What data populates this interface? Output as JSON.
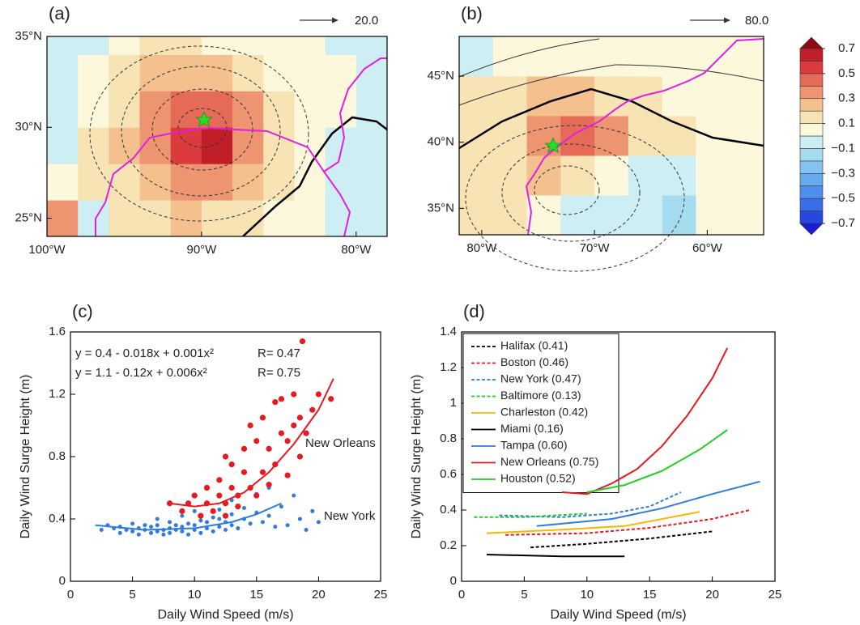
{
  "chart_data": [
    {
      "type": "heatmap",
      "panel_label": "(a)",
      "reference_vector": "20.0",
      "xlim": [
        -100,
        -78
      ],
      "ylim": [
        24,
        35
      ],
      "xticks": [
        {
          "value": -100,
          "label": "100°W"
        },
        {
          "value": -90,
          "label": "90°W"
        },
        {
          "value": -80,
          "label": "80°W"
        }
      ],
      "yticks": [
        {
          "value": 25,
          "label": "25°N"
        },
        {
          "value": 30,
          "label": "30°N"
        },
        {
          "value": 35,
          "label": "35°N"
        }
      ],
      "x": [
        -99,
        -97,
        -95,
        -93,
        -91,
        -89,
        -87,
        -85,
        -83,
        -81,
        -79
      ],
      "y": [
        25,
        27,
        29,
        31,
        33,
        35
      ],
      "z": [
        [
          0.3,
          -0.1,
          0.1,
          0.1,
          0.2,
          0.15,
          0.1,
          0.05,
          0.05,
          -0.1,
          -0.05
        ],
        [
          0.05,
          0.1,
          0.15,
          0.25,
          0.35,
          0.3,
          0.2,
          0.1,
          0.05,
          -0.1,
          -0.1
        ],
        [
          -0.05,
          0.1,
          0.2,
          0.35,
          0.55,
          0.65,
          0.35,
          0.1,
          0.05,
          -0.05,
          -0.1
        ],
        [
          -0.1,
          0.05,
          0.15,
          0.3,
          0.45,
          0.45,
          0.3,
          0.1,
          0.05,
          0.05,
          -0.05
        ],
        [
          -0.1,
          0.05,
          0.1,
          0.2,
          0.25,
          0.2,
          0.1,
          0.05,
          0.05,
          0.05,
          -0.1
        ],
        [
          -0.1,
          -0.1,
          0.05,
          0.1,
          0.1,
          0.05,
          0.05,
          0.05,
          0.05,
          -0.05,
          -0.1
        ]
      ]
    },
    {
      "type": "heatmap",
      "panel_label": "(b)",
      "reference_vector": "80.0",
      "xlim": [
        -82,
        -55
      ],
      "ylim": [
        33,
        48
      ],
      "xticks": [
        {
          "value": -80,
          "label": "80°W"
        },
        {
          "value": -70,
          "label": "70°W"
        },
        {
          "value": -60,
          "label": "60°W"
        }
      ],
      "yticks": [
        {
          "value": 35,
          "label": "35°N"
        },
        {
          "value": 40,
          "label": "40°N"
        },
        {
          "value": 45,
          "label": "45°N"
        }
      ],
      "x": [
        -80.5,
        -77.5,
        -74.5,
        -71.5,
        -68.5,
        -65.5,
        -62.5,
        -59.5,
        -56.5
      ],
      "y": [
        34.5,
        37.5,
        40.5,
        43.5,
        46.5
      ],
      "z": [
        [
          0.1,
          0.1,
          0.05,
          -0.05,
          -0.05,
          -0.1,
          -0.15,
          0.05,
          0.05
        ],
        [
          0.1,
          0.1,
          0.2,
          0.1,
          0.05,
          -0.05,
          -0.1,
          0.05,
          0.05
        ],
        [
          0.1,
          0.15,
          0.35,
          0.45,
          0.3,
          0.15,
          0.1,
          0.05,
          0.05
        ],
        [
          0.1,
          0.1,
          0.2,
          0.2,
          0.15,
          0.1,
          0.05,
          0.05,
          0.05
        ],
        [
          -0.1,
          0.05,
          0.05,
          0.05,
          0.05,
          0.05,
          0.05,
          0.05,
          0.05
        ]
      ],
      "colorbar": {
        "levels": [
          -0.7,
          -0.6,
          -0.5,
          -0.4,
          -0.3,
          -0.2,
          -0.1,
          0,
          0.1,
          0.2,
          0.3,
          0.4,
          0.5,
          0.6,
          0.7
        ],
        "colors": [
          "#1a1ad9",
          "#2448e0",
          "#3a6ee8",
          "#4f8eee",
          "#66aaf0",
          "#84c4f2",
          "#a6dcef",
          "#cdeef2",
          "#fdf8dc",
          "#f8e3b4",
          "#f3c08e",
          "#ec9570",
          "#e56a58",
          "#dc3a3c",
          "#c01f2a",
          "#8f0a14"
        ],
        "ticks": [
          0.7,
          0.5,
          0.3,
          0.1,
          {
            "value": -0.1,
            "label": "−0.1"
          },
          {
            "value": -0.3,
            "label": "−0.3"
          },
          {
            "value": -0.5,
            "label": "−0.5"
          },
          {
            "value": -0.7,
            "label": "−0.7"
          }
        ]
      }
    },
    {
      "type": "scatter",
      "panel_label": "(c)",
      "xlabel": "Daily Wind Speed (m/s)",
      "ylabel": "Daily Wind Surge Height (m)",
      "xlim": [
        0,
        25
      ],
      "ylim": [
        0,
        1.6
      ],
      "xticks": [
        0,
        5,
        10,
        15,
        20,
        25
      ],
      "yticks": [
        0,
        0.4,
        0.8,
        1.2,
        1.6
      ],
      "series": [
        {
          "mode": "markers",
          "color": "#2f7be0",
          "x": [
            2.5,
            3,
            3.5,
            4,
            4,
            4.5,
            5,
            5,
            5.5,
            5.5,
            6,
            6,
            6.5,
            6.5,
            7,
            7,
            7,
            7.5,
            7.5,
            8,
            8,
            8,
            8.5,
            8.5,
            9,
            9,
            9,
            9.5,
            9.5,
            10,
            10,
            10,
            10.5,
            10.5,
            11,
            11,
            11,
            11.5,
            11.5,
            12,
            12,
            12,
            12.5,
            12.5,
            13,
            13,
            13,
            13.5,
            14,
            14,
            14.5,
            15,
            15,
            15.5,
            16,
            16,
            16.5,
            17,
            17.5,
            18,
            18.5,
            19,
            19.5,
            20
          ],
          "values": [
            0.33,
            0.36,
            0.34,
            0.31,
            0.35,
            0.33,
            0.32,
            0.37,
            0.3,
            0.34,
            0.33,
            0.36,
            0.31,
            0.35,
            0.32,
            0.36,
            0.4,
            0.33,
            0.3,
            0.34,
            0.38,
            0.31,
            0.33,
            0.36,
            0.32,
            0.35,
            0.42,
            0.3,
            0.37,
            0.33,
            0.36,
            0.45,
            0.31,
            0.39,
            0.34,
            0.38,
            0.5,
            0.32,
            0.41,
            0.35,
            0.4,
            0.46,
            0.33,
            0.38,
            0.36,
            0.43,
            0.52,
            0.34,
            0.4,
            0.47,
            0.37,
            0.44,
            0.56,
            0.38,
            0.42,
            0.6,
            0.35,
            0.48,
            0.36,
            0.55,
            0.4,
            0.33,
            0.45,
            0.38
          ]
        },
        {
          "mode": "markers",
          "color": "#e8191f",
          "x": [
            8,
            9,
            9.5,
            10,
            10.5,
            11,
            11,
            11.5,
            12,
            12,
            12.5,
            12.5,
            13,
            13,
            13.5,
            13.5,
            14,
            14,
            14.5,
            15,
            15,
            15.5,
            15.5,
            16,
            16,
            16.5,
            16.5,
            17,
            17,
            17.5,
            17.5,
            18,
            18,
            18.5,
            18.5,
            19,
            19.5,
            20,
            21,
            18.7,
            14.5,
            12.5
          ],
          "values": [
            0.5,
            0.45,
            0.5,
            0.55,
            0.42,
            0.6,
            0.5,
            0.45,
            0.55,
            0.65,
            0.5,
            0.42,
            0.6,
            0.75,
            0.55,
            0.48,
            0.7,
            0.85,
            0.6,
            0.55,
            0.9,
            0.7,
            1.05,
            0.85,
            0.62,
            1.15,
            0.75,
            1.17,
            0.95,
            0.9,
            0.68,
            1.0,
            1.2,
            0.8,
            1.05,
            0.95,
            1.1,
            1.2,
            1.17,
            1.54,
            1.0,
            0.8
          ]
        },
        {
          "mode": "line",
          "color": "#2f7be0",
          "x": [
            2,
            6,
            10,
            13,
            15,
            17
          ],
          "values": [
            0.36,
            0.33,
            0.34,
            0.38,
            0.43,
            0.5
          ]
        },
        {
          "mode": "line",
          "color": "#e8191f",
          "x": [
            8,
            10,
            12,
            14,
            16,
            18,
            20,
            21.2
          ],
          "values": [
            0.5,
            0.48,
            0.5,
            0.57,
            0.7,
            0.88,
            1.1,
            1.3
          ]
        }
      ],
      "annotations": [
        {
          "text": "y = 0.4 - 0.018x + 0.001x²",
          "color": "#2f7be0"
        },
        {
          "text": "R= 0.47",
          "color": "#2f7be0"
        },
        {
          "text": "y = 1.1 - 0.12x + 0.006x²",
          "color": "#e8191f"
        },
        {
          "text": "R= 0.75",
          "color": "#e8191f"
        },
        {
          "text": "New Orleans",
          "color": "#e8191f"
        },
        {
          "text": "New York",
          "color": "#2f7be0"
        }
      ]
    },
    {
      "type": "line",
      "panel_label": "(d)",
      "xlabel": "Daily Wind Speed (m/s)",
      "ylabel": "Daily Wind Surge Height (m)",
      "xlim": [
        0,
        25
      ],
      "ylim": [
        0,
        1.4
      ],
      "xticks": [
        0,
        5,
        10,
        15,
        20,
        25
      ],
      "yticks": [
        0,
        0.2,
        0.4,
        0.6,
        0.8,
        1,
        1.2,
        1.4
      ],
      "legend": "upper left",
      "series": [
        {
          "name": "Halifax (0.41)",
          "color": "#000000",
          "dashed": true,
          "x": [
            5.5,
            10,
            15,
            20
          ],
          "values": [
            0.19,
            0.21,
            0.24,
            0.28
          ]
        },
        {
          "name": "Boston (0.46)",
          "color": "#e8191f",
          "dashed": true,
          "x": [
            3.5,
            10,
            15,
            20,
            23
          ],
          "values": [
            0.26,
            0.27,
            0.3,
            0.35,
            0.4
          ]
        },
        {
          "name": "New York (0.47)",
          "color": "#2f7be0",
          "dashed": true,
          "x": [
            3,
            8,
            12,
            15,
            17.5
          ],
          "values": [
            0.37,
            0.36,
            0.38,
            0.42,
            0.5
          ]
        },
        {
          "name": "Baltimore (0.13)",
          "color": "#1fcf1f",
          "dashed": true,
          "x": [
            1,
            5,
            10
          ],
          "values": [
            0.36,
            0.36,
            0.38
          ]
        },
        {
          "name": "Charleston (0.42)",
          "color": "#f5b800",
          "dashed": false,
          "x": [
            2,
            8,
            13,
            19
          ],
          "values": [
            0.27,
            0.29,
            0.31,
            0.39
          ]
        },
        {
          "name": "Miami (0.16)",
          "color": "#000000",
          "dashed": false,
          "x": [
            2,
            8,
            13
          ],
          "values": [
            0.15,
            0.14,
            0.14
          ]
        },
        {
          "name": "Tampa (0.60)",
          "color": "#2f7be0",
          "dashed": false,
          "x": [
            6,
            12,
            16,
            20,
            23.8
          ],
          "values": [
            0.31,
            0.35,
            0.41,
            0.49,
            0.56
          ]
        },
        {
          "name": "New Orleans (0.75)",
          "color": "#e8191f",
          "dashed": false,
          "x": [
            8,
            10,
            12,
            14,
            16,
            18,
            20,
            21.2
          ],
          "values": [
            0.5,
            0.49,
            0.55,
            0.63,
            0.76,
            0.93,
            1.14,
            1.31
          ]
        },
        {
          "name": "Houston (0.52)",
          "color": "#1fcf1f",
          "dashed": false,
          "x": [
            10,
            13,
            16,
            19,
            21.2
          ],
          "values": [
            0.5,
            0.54,
            0.62,
            0.74,
            0.85
          ]
        }
      ]
    }
  ]
}
